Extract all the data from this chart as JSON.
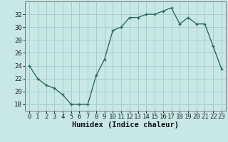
{
  "x": [
    0,
    1,
    2,
    3,
    4,
    5,
    6,
    7,
    8,
    9,
    10,
    11,
    12,
    13,
    14,
    15,
    16,
    17,
    18,
    19,
    20,
    21,
    22,
    23
  ],
  "y": [
    24,
    22,
    21,
    20.5,
    19.5,
    18,
    18,
    18,
    22.5,
    25,
    29.5,
    30,
    31.5,
    31.5,
    32,
    32,
    32.5,
    33,
    30.5,
    31.5,
    30.5,
    30.5,
    27,
    23.5
  ],
  "line_color": "#2d6b5e",
  "marker_color": "#2d6b5e",
  "bg_color": "#c8e8e8",
  "grid_color": "#aacccc",
  "xlabel": "Humidex (Indice chaleur)",
  "ylim": [
    17,
    34
  ],
  "xlim": [
    -0.5,
    23.5
  ],
  "yticks": [
    18,
    20,
    22,
    24,
    26,
    28,
    30,
    32
  ],
  "xticks": [
    0,
    1,
    2,
    3,
    4,
    5,
    6,
    7,
    8,
    9,
    10,
    11,
    12,
    13,
    14,
    15,
    16,
    17,
    18,
    19,
    20,
    21,
    22,
    23
  ],
  "xlabel_fontsize": 7.5,
  "tick_fontsize": 6.5,
  "figsize": [
    3.2,
    2.0
  ],
  "dpi": 100
}
